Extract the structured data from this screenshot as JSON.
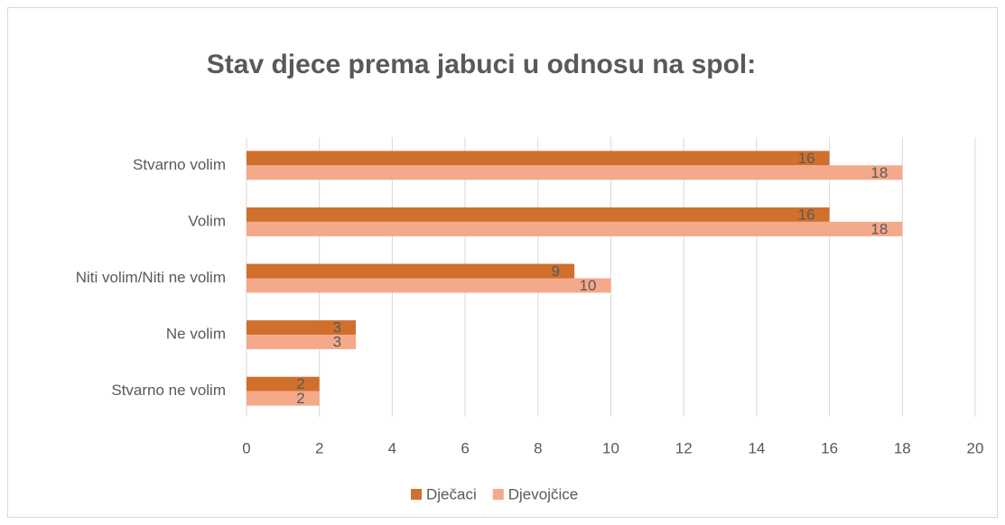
{
  "chart_data": {
    "type": "bar",
    "orientation": "horizontal",
    "title": "Stav djece prema jabuci u  odnosu na spol:",
    "categories": [
      "Stvarno volim",
      "Volim",
      "Niti volim/Niti ne volim",
      "Ne volim",
      "Stvarno ne volim"
    ],
    "series": [
      {
        "name": "Dječaci",
        "color": "#d0702c",
        "values": [
          16,
          16,
          9,
          3,
          2
        ]
      },
      {
        "name": "Djevojčice",
        "color": "#f4a98a",
        "values": [
          18,
          18,
          10,
          3,
          2
        ]
      }
    ],
    "xlim": [
      0,
      20
    ],
    "xticks": [
      0,
      2,
      4,
      6,
      8,
      10,
      12,
      14,
      16,
      18,
      20
    ],
    "grid": true,
    "legend": "bottom",
    "data_labels": true
  }
}
